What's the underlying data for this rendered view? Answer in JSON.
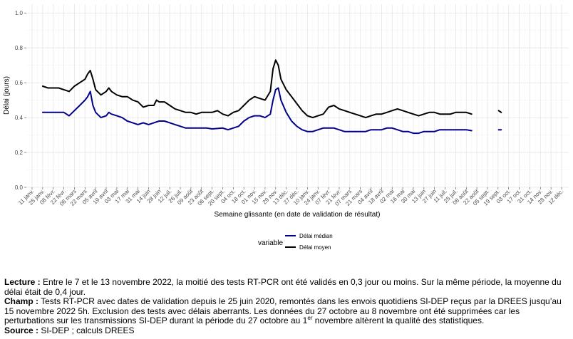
{
  "chart_data": {
    "type": "line",
    "title": "",
    "xlabel": "Semaine glissante (en date de validation de résultat)",
    "ylabel": "Délai (jours)",
    "ylim": [
      0,
      1.05
    ],
    "yticks": [
      0.0,
      0.2,
      0.4,
      0.6,
      0.8,
      1.0
    ],
    "ytick_labels": [
      "0.0",
      "0.2",
      "0.4",
      "0.6",
      "0.8",
      "1.0"
    ],
    "grid": true,
    "legend": {
      "title": "variable",
      "position": "bottom"
    },
    "x_ticks": [
      "11 janv.",
      "25 janv.",
      "08 févr.",
      "22 févr.",
      "08 mars",
      "22 mars",
      "05 avril",
      "19 avril",
      "03 mai",
      "17 mai",
      "31 mai",
      "14 juin",
      "28 juin",
      "12 juil.",
      "26 juil.",
      "09 août",
      "23 août",
      "06 sept.",
      "20 sept.",
      "04 oct.",
      "18 oct.",
      "01 nov.",
      "15 nov.",
      "29 nov.",
      "13 déc.",
      "27 déc.",
      "10 janv.",
      "24 janv.",
      "07 févr.",
      "21 févr.",
      "07 mars",
      "21 mars",
      "04 avril",
      "18 avril",
      "02 mai",
      "16 mai",
      "30 mai",
      "13 juin",
      "27 juin",
      "11 juil.",
      "25 juil.",
      "08 août",
      "22 août",
      "05 sept.",
      "19 sept.",
      "03 oct.",
      "17 oct.",
      "31 oct.",
      "14 nov.",
      "28 nov.",
      "12 déc."
    ],
    "series": [
      {
        "name": "Délai médian",
        "color": "#00008b",
        "points": [
          [
            2,
            0.43
          ],
          [
            4,
            0.43
          ],
          [
            6,
            0.43
          ],
          [
            6.5,
            0.42
          ],
          [
            7,
            0.41
          ],
          [
            8,
            0.44
          ],
          [
            9,
            0.47
          ],
          [
            10,
            0.5
          ],
          [
            10.5,
            0.52
          ],
          [
            11,
            0.55
          ],
          [
            11.5,
            0.47
          ],
          [
            12,
            0.43
          ],
          [
            13,
            0.4
          ],
          [
            14,
            0.41
          ],
          [
            14.5,
            0.43
          ],
          [
            15,
            0.42
          ],
          [
            16,
            0.41
          ],
          [
            17,
            0.4
          ],
          [
            18,
            0.38
          ],
          [
            19,
            0.37
          ],
          [
            20,
            0.36
          ],
          [
            21,
            0.37
          ],
          [
            22,
            0.36
          ],
          [
            23,
            0.37
          ],
          [
            24,
            0.38
          ],
          [
            25,
            0.38
          ],
          [
            26,
            0.37
          ],
          [
            27,
            0.36
          ],
          [
            28,
            0.35
          ],
          [
            29,
            0.34
          ],
          [
            30,
            0.34
          ],
          [
            32,
            0.34
          ],
          [
            33,
            0.34
          ],
          [
            34,
            0.335
          ],
          [
            36,
            0.34
          ],
          [
            37,
            0.33
          ],
          [
            39,
            0.35
          ],
          [
            40,
            0.38
          ],
          [
            41,
            0.4
          ],
          [
            42,
            0.41
          ],
          [
            43,
            0.41
          ],
          [
            44,
            0.4
          ],
          [
            45,
            0.42
          ],
          [
            45.5,
            0.5
          ],
          [
            46,
            0.56
          ],
          [
            46.5,
            0.57
          ],
          [
            47,
            0.5
          ],
          [
            48,
            0.43
          ],
          [
            49,
            0.38
          ],
          [
            50,
            0.35
          ],
          [
            51,
            0.33
          ],
          [
            52,
            0.32
          ],
          [
            53,
            0.32
          ],
          [
            54,
            0.33
          ],
          [
            55,
            0.34
          ],
          [
            56,
            0.34
          ],
          [
            57,
            0.34
          ],
          [
            58,
            0.33
          ],
          [
            59,
            0.32
          ],
          [
            60,
            0.32
          ],
          [
            62,
            0.32
          ],
          [
            63,
            0.32
          ],
          [
            64,
            0.33
          ],
          [
            65,
            0.33
          ],
          [
            66,
            0.33
          ],
          [
            67,
            0.34
          ],
          [
            68,
            0.34
          ],
          [
            69,
            0.33
          ],
          [
            70,
            0.32
          ],
          [
            71,
            0.32
          ],
          [
            72,
            0.31
          ],
          [
            73,
            0.31
          ],
          [
            74,
            0.32
          ],
          [
            75,
            0.32
          ],
          [
            76,
            0.32
          ],
          [
            77,
            0.33
          ],
          [
            78,
            0.33
          ],
          [
            79,
            0.33
          ],
          [
            80,
            0.33
          ],
          [
            81,
            0.33
          ],
          [
            82,
            0.33
          ],
          [
            83,
            0.325
          ],
          null,
          [
            88.1,
            0.33
          ],
          [
            88.6,
            0.33
          ]
        ]
      },
      {
        "name": "Délai moyen",
        "color": "#000000",
        "points": [
          [
            2,
            0.58
          ],
          [
            3,
            0.57
          ],
          [
            4,
            0.57
          ],
          [
            5,
            0.57
          ],
          [
            6,
            0.56
          ],
          [
            7,
            0.55
          ],
          [
            8,
            0.58
          ],
          [
            9,
            0.6
          ],
          [
            10,
            0.62
          ],
          [
            10.5,
            0.65
          ],
          [
            11,
            0.67
          ],
          [
            11.5,
            0.62
          ],
          [
            12,
            0.56
          ],
          [
            13,
            0.53
          ],
          [
            14,
            0.55
          ],
          [
            14.5,
            0.57
          ],
          [
            15,
            0.55
          ],
          [
            16,
            0.53
          ],
          [
            17,
            0.52
          ],
          [
            18,
            0.52
          ],
          [
            19,
            0.5
          ],
          [
            20,
            0.49
          ],
          [
            21,
            0.46
          ],
          [
            22,
            0.47
          ],
          [
            23,
            0.47
          ],
          [
            23.5,
            0.5
          ],
          [
            24,
            0.49
          ],
          [
            25,
            0.49
          ],
          [
            26,
            0.47
          ],
          [
            27,
            0.45
          ],
          [
            28,
            0.44
          ],
          [
            29,
            0.43
          ],
          [
            30,
            0.43
          ],
          [
            31,
            0.42
          ],
          [
            32,
            0.43
          ],
          [
            33,
            0.43
          ],
          [
            34,
            0.43
          ],
          [
            35,
            0.44
          ],
          [
            36,
            0.42
          ],
          [
            37,
            0.41
          ],
          [
            38,
            0.43
          ],
          [
            39,
            0.44
          ],
          [
            40,
            0.47
          ],
          [
            41,
            0.5
          ],
          [
            42,
            0.52
          ],
          [
            43,
            0.51
          ],
          [
            44,
            0.5
          ],
          [
            45,
            0.55
          ],
          [
            45.5,
            0.68
          ],
          [
            46,
            0.73
          ],
          [
            46.5,
            0.7
          ],
          [
            47,
            0.62
          ],
          [
            48,
            0.56
          ],
          [
            49,
            0.52
          ],
          [
            50,
            0.48
          ],
          [
            51,
            0.44
          ],
          [
            52,
            0.41
          ],
          [
            53,
            0.4
          ],
          [
            54,
            0.41
          ],
          [
            55,
            0.42
          ],
          [
            56,
            0.46
          ],
          [
            57,
            0.47
          ],
          [
            58,
            0.45
          ],
          [
            59,
            0.44
          ],
          [
            60,
            0.43
          ],
          [
            61,
            0.42
          ],
          [
            62,
            0.41
          ],
          [
            63,
            0.4
          ],
          [
            64,
            0.41
          ],
          [
            65,
            0.42
          ],
          [
            66,
            0.42
          ],
          [
            67,
            0.43
          ],
          [
            68,
            0.44
          ],
          [
            69,
            0.45
          ],
          [
            70,
            0.44
          ],
          [
            71,
            0.43
          ],
          [
            72,
            0.42
          ],
          [
            73,
            0.41
          ],
          [
            74,
            0.42
          ],
          [
            75,
            0.43
          ],
          [
            76,
            0.43
          ],
          [
            77,
            0.42
          ],
          [
            78,
            0.42
          ],
          [
            79,
            0.42
          ],
          [
            80,
            0.43
          ],
          [
            81,
            0.43
          ],
          [
            82,
            0.43
          ],
          [
            83,
            0.42
          ],
          null,
          [
            88.1,
            0.44
          ],
          [
            88.6,
            0.43
          ]
        ]
      }
    ]
  },
  "notes": {
    "lecture_label": "Lecture :",
    "lecture_text": " Entre le 7 et le 13 novembre 2022, la moitié des tests RT-PCR ont été validés en 0,3 jour ou moins. Sur la même période, la moyenne du délai était de 0,4 jour.",
    "champ_label": "Champ :",
    "champ_text_1": " Tests RT-PCR avec dates de validation depuis le 25 juin 2020, remontés dans les envois quotidiens SI-DEP reçus par la DREES jusqu’au 15 novembre 2022 5h. Exclusion des tests avec délais aberrants. Les données du 27 octobre au 8 novembre ont été supprimées car les perturbations sur les transmissions SI-DEP durant la période du 27 octobre au 1",
    "champ_sup": "er",
    "champ_text_2": " novembre altèrent la qualité des statistiques.",
    "source_label": "Source :",
    "source_text": " SI-DEP ; calculs DREES"
  }
}
